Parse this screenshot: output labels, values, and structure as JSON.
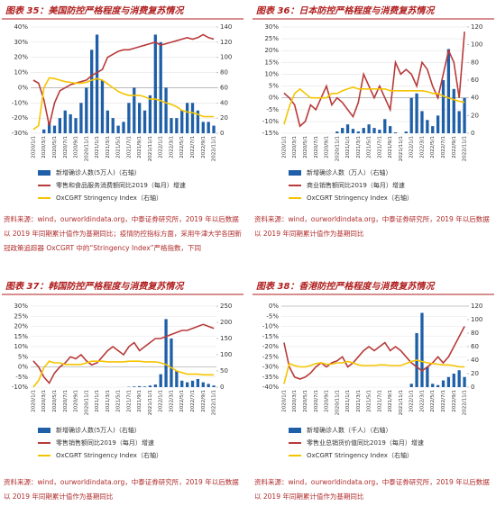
{
  "chart_data": [
    {
      "type": "combo",
      "title": "图表 35：美国防控严格程度与消费复苏情况",
      "source": "资料来源：wind，ourworldindata.org，中泰证券研究所，2019 年以后数据以 2019 年同期累计值作为基期同比；疫情防控指标方面，采用牛津大学各国新冠政策追踪器 OxCGRT 中的“Stringency Index”严格指数，下同",
      "categories": [
        "2020/1/1",
        null,
        "2020/3/1",
        null,
        "2020/5/1",
        null,
        "2020/7/1",
        null,
        "2020/9/1",
        null,
        "2020/11/1",
        null,
        "2021/1/1",
        null,
        "2021/3/1",
        null,
        "2021/5/1",
        null,
        "2021/7/1",
        null,
        "2021/9/1",
        null,
        "2021/11/1",
        null,
        "2022/1/1",
        null,
        "2022/3/1",
        null,
        "2022/5/1",
        null,
        "2022/7/1",
        null,
        "2022/9/1",
        null,
        "2022/11/1"
      ],
      "ylim": [
        -30,
        40
      ],
      "yticks": [
        {
          "value": -30,
          "label": "-30%"
        },
        {
          "value": -20,
          "label": "-20%"
        },
        {
          "value": -10,
          "label": "-10%"
        },
        {
          "value": 0,
          "label": "0%"
        },
        {
          "value": 10,
          "label": "10%"
        },
        {
          "value": 20,
          "label": "20%"
        },
        {
          "value": 30,
          "label": "30%"
        },
        {
          "value": 40,
          "label": "40%"
        }
      ],
      "y2lim": [
        0,
        140
      ],
      "y2ticks": [
        0,
        20,
        40,
        60,
        80,
        100,
        120,
        140
      ],
      "series": [
        {
          "name": "新增确诊人数(5万人)（右轴）",
          "type": "bar",
          "axis": "y2",
          "color": "#1f5fa8",
          "values": [
            0,
            0,
            5,
            15,
            10,
            20,
            30,
            25,
            20,
            40,
            60,
            110,
            130,
            70,
            30,
            20,
            10,
            15,
            40,
            60,
            40,
            30,
            50,
            130,
            120,
            60,
            20,
            20,
            30,
            40,
            40,
            30,
            15,
            15,
            10
          ]
        },
        {
          "name": "零售和食品服务消费额同比2019（每月）增速",
          "type": "line",
          "color": "#b83a3a",
          "values": [
            5,
            3,
            -8,
            -25,
            -10,
            -2,
            0,
            2,
            3,
            4,
            5,
            8,
            10,
            12,
            20,
            22,
            24,
            25,
            25,
            26,
            27,
            28,
            29,
            30,
            28,
            29,
            30,
            31,
            32,
            33,
            32,
            33,
            35,
            33,
            32
          ]
        },
        {
          "name": "OxCGRT Stringency Index（右轴）",
          "type": "line",
          "axis": "y2",
          "color": "#f5c400",
          "values": [
            5,
            10,
            60,
            73,
            72,
            70,
            68,
            67,
            66,
            66,
            67,
            70,
            72,
            70,
            65,
            60,
            55,
            52,
            50,
            50,
            50,
            48,
            45,
            45,
            43,
            40,
            38,
            35,
            30,
            28,
            27,
            25,
            22,
            22,
            22
          ]
        }
      ]
    },
    {
      "type": "combo",
      "title": "图表 36：日本防控严格程度与消费复苏情况",
      "source": "资料来源：wind，ourworldindata.org，中泰证券研究所，2019 年以后数据以 2019 年同期累计值作为基期同比",
      "categories": [
        "2020/1/1",
        null,
        "2020/3/1",
        null,
        "2020/5/1",
        null,
        "2020/7/1",
        null,
        "2020/9/1",
        null,
        "2020/11/1",
        null,
        "2021/1/1",
        null,
        "2021/3/1",
        null,
        "2021/5/1",
        null,
        "2021/7/1",
        null,
        "2021/9/1",
        null,
        "2021/11/1",
        null,
        "2022/1/1",
        null,
        "2022/3/1",
        null,
        "2022/5/1",
        null,
        "2022/7/1",
        null,
        "2022/9/1",
        null,
        "2022/11/1"
      ],
      "ylim": [
        -15,
        30
      ],
      "yticks": [
        {
          "value": -15,
          "label": "-15%"
        },
        {
          "value": -10,
          "label": "-10%"
        },
        {
          "value": -5,
          "label": "-5%"
        },
        {
          "value": 0,
          "label": "0%"
        },
        {
          "value": 5,
          "label": "5%"
        },
        {
          "value": 10,
          "label": "10%"
        },
        {
          "value": 15,
          "label": "15%"
        },
        {
          "value": 20,
          "label": "20%"
        },
        {
          "value": 25,
          "label": "25%"
        },
        {
          "value": 30,
          "label": "30%"
        }
      ],
      "y2lim": [
        0,
        120
      ],
      "y2ticks": [
        0,
        20,
        40,
        60,
        80,
        100,
        120
      ],
      "series": [
        {
          "name": "新增确诊人数（万人）（右轴）",
          "type": "bar",
          "axis": "y2",
          "color": "#1f5fa8",
          "values": [
            0,
            0,
            0,
            0,
            0,
            0,
            0,
            0,
            0,
            0,
            2,
            6,
            10,
            5,
            2,
            6,
            10,
            6,
            4,
            16,
            8,
            1,
            0,
            2,
            40,
            45,
            25,
            15,
            8,
            20,
            60,
            95,
            50,
            25,
            40
          ]
        },
        {
          "name": "商业销售额同比2019（每月）增速",
          "type": "line",
          "color": "#b83a3a",
          "values": [
            2,
            0,
            -3,
            -12,
            -10,
            -3,
            -5,
            0,
            5,
            -3,
            0,
            -2,
            -5,
            -8,
            -2,
            10,
            5,
            0,
            5,
            0,
            -5,
            15,
            10,
            12,
            10,
            5,
            15,
            12,
            5,
            0,
            10,
            20,
            15,
            0,
            28
          ]
        },
        {
          "name": "OxCGRT Stringency Index（右轴）",
          "type": "line",
          "axis": "y2",
          "color": "#f5c400",
          "values": [
            10,
            30,
            45,
            50,
            45,
            40,
            40,
            40,
            40,
            45,
            45,
            48,
            50,
            52,
            50,
            50,
            50,
            50,
            50,
            50,
            48,
            48,
            48,
            48,
            48,
            48,
            48,
            47,
            45,
            45,
            42,
            40,
            38,
            36,
            35
          ]
        }
      ]
    },
    {
      "type": "combo",
      "title": "图表 37：韩国防控严格程度与消费复苏情况",
      "source": "资料来源：wind，ourworldindata.org，中泰证券研究所，2019 年以后数据以 2019 年同期累计值作为基期同比",
      "categories": [
        "2020/1/1",
        null,
        "2020/3/1",
        null,
        "2020/5/1",
        null,
        "2020/7/1",
        null,
        "2020/9/1",
        null,
        "2020/11/1",
        null,
        "2021/1/1",
        null,
        "2021/3/1",
        null,
        "2021/5/1",
        null,
        "2021/7/1",
        null,
        "2021/9/1",
        null,
        "2021/11/1",
        null,
        "2022/1/1",
        null,
        "2022/3/1",
        null,
        "2022/5/1",
        null,
        "2022/7/1",
        null,
        "2022/9/1",
        null,
        "2022/11/1"
      ],
      "ylim": [
        -10,
        30
      ],
      "yticks": [
        {
          "value": -10,
          "label": "-10%"
        },
        {
          "value": -5,
          "label": "-5%"
        },
        {
          "value": 0,
          "label": "0%"
        },
        {
          "value": 5,
          "label": "5%"
        },
        {
          "value": 10,
          "label": "10%"
        },
        {
          "value": 15,
          "label": "15%"
        },
        {
          "value": 20,
          "label": "20%"
        },
        {
          "value": 25,
          "label": "25%"
        },
        {
          "value": 30,
          "label": "30%"
        }
      ],
      "y2lim": [
        0,
        250
      ],
      "y2ticks": [
        0,
        50,
        100,
        150,
        200,
        250
      ],
      "series": [
        {
          "name": "新增确诊人数(5万人)（右轴）",
          "type": "bar",
          "axis": "y2",
          "color": "#1f5fa8",
          "values": [
            0,
            0,
            0,
            0,
            0,
            0,
            0,
            0,
            0,
            0,
            0,
            0,
            0,
            0,
            0,
            0,
            0,
            0,
            1,
            2,
            3,
            2,
            5,
            8,
            40,
            210,
            150,
            50,
            20,
            15,
            20,
            25,
            15,
            10,
            5
          ]
        },
        {
          "name": "零售销售额同比2019（每月）增速",
          "type": "line",
          "color": "#b83a3a",
          "values": [
            3,
            0,
            -5,
            -8,
            -3,
            0,
            2,
            5,
            4,
            6,
            3,
            1,
            2,
            5,
            8,
            10,
            8,
            6,
            10,
            12,
            8,
            10,
            12,
            14,
            14,
            15,
            16,
            17,
            18,
            18,
            19,
            20,
            21,
            20,
            19
          ]
        },
        {
          "name": "OxCGRT Stringency Index（右轴）",
          "type": "line",
          "axis": "y2",
          "color": "#f5c400",
          "values": [
            0,
            20,
            60,
            80,
            75,
            75,
            70,
            70,
            70,
            70,
            75,
            80,
            80,
            80,
            78,
            78,
            78,
            78,
            80,
            80,
            80,
            78,
            78,
            78,
            75,
            70,
            60,
            50,
            45,
            40,
            40,
            40,
            38,
            38,
            38
          ]
        }
      ]
    },
    {
      "type": "combo",
      "title": "图表 38：香港防控严格程度与消费复苏情况",
      "source": "资料来源：wind，ourworldindata.org，中泰证券研究所，2019 年以后数据以 2019 年同期累计值作为基期同比",
      "categories": [
        "2020/1/1",
        null,
        "2020/3/1",
        null,
        "2020/5/1",
        null,
        "2020/7/1",
        null,
        "2020/9/1",
        null,
        "2020/11/1",
        null,
        "2021/1/1",
        null,
        "2021/3/1",
        null,
        "2021/5/1",
        null,
        "2021/7/1",
        null,
        "2021/9/1",
        null,
        "2021/11/1",
        null,
        "2022/1/1",
        null,
        "2022/3/1",
        null,
        "2022/5/1",
        null,
        "2022/7/1",
        null,
        "2022/9/1",
        null,
        "2022/11/1"
      ],
      "ylim": [
        -40,
        0
      ],
      "yticks": [
        {
          "value": -40,
          "label": "-40%"
        },
        {
          "value": -35,
          "label": "-35%"
        },
        {
          "value": -30,
          "label": "-30%"
        },
        {
          "value": -25,
          "label": "-25%"
        },
        {
          "value": -20,
          "label": "-20%"
        },
        {
          "value": -15,
          "label": "-15%"
        },
        {
          "value": -10,
          "label": "-10%"
        },
        {
          "value": -5,
          "label": "-5%"
        },
        {
          "value": 0,
          "label": "0%"
        }
      ],
      "y2lim": [
        0,
        120
      ],
      "y2ticks": [
        0,
        20,
        40,
        60,
        80,
        100,
        120
      ],
      "series": [
        {
          "name": "新增确诊人数（千人）（右轴）",
          "type": "bar",
          "axis": "y2",
          "color": "#1f5fa8",
          "values": [
            0,
            0,
            0,
            0,
            0,
            0,
            0,
            0,
            0,
            0,
            0,
            0,
            0,
            0,
            0,
            0,
            0,
            0,
            0,
            0,
            0,
            0,
            0,
            0,
            5,
            80,
            110,
            30,
            5,
            3,
            10,
            15,
            20,
            25,
            15
          ]
        },
        {
          "name": "零售业总销货价值同比2019（每月）增速",
          "type": "line",
          "color": "#b83a3a",
          "values": [
            -18,
            -30,
            -35,
            -36,
            -35,
            -33,
            -30,
            -28,
            -30,
            -28,
            -27,
            -25,
            -30,
            -28,
            -25,
            -22,
            -20,
            -22,
            -20,
            -18,
            -22,
            -20,
            -22,
            -25,
            -28,
            -30,
            -32,
            -30,
            -28,
            -25,
            -28,
            -25,
            -20,
            -15,
            -10
          ]
        },
        {
          "name": "OxCGRT Stringency Index（右轴）",
          "type": "line",
          "axis": "y2",
          "color": "#f5c400",
          "values": [
            5,
            35,
            32,
            30,
            30,
            32,
            35,
            36,
            34,
            34,
            36,
            36,
            38,
            36,
            33,
            32,
            32,
            32,
            33,
            33,
            32,
            32,
            32,
            35,
            38,
            40,
            38,
            36,
            35,
            34,
            33,
            33,
            32,
            30,
            30
          ]
        }
      ]
    }
  ]
}
